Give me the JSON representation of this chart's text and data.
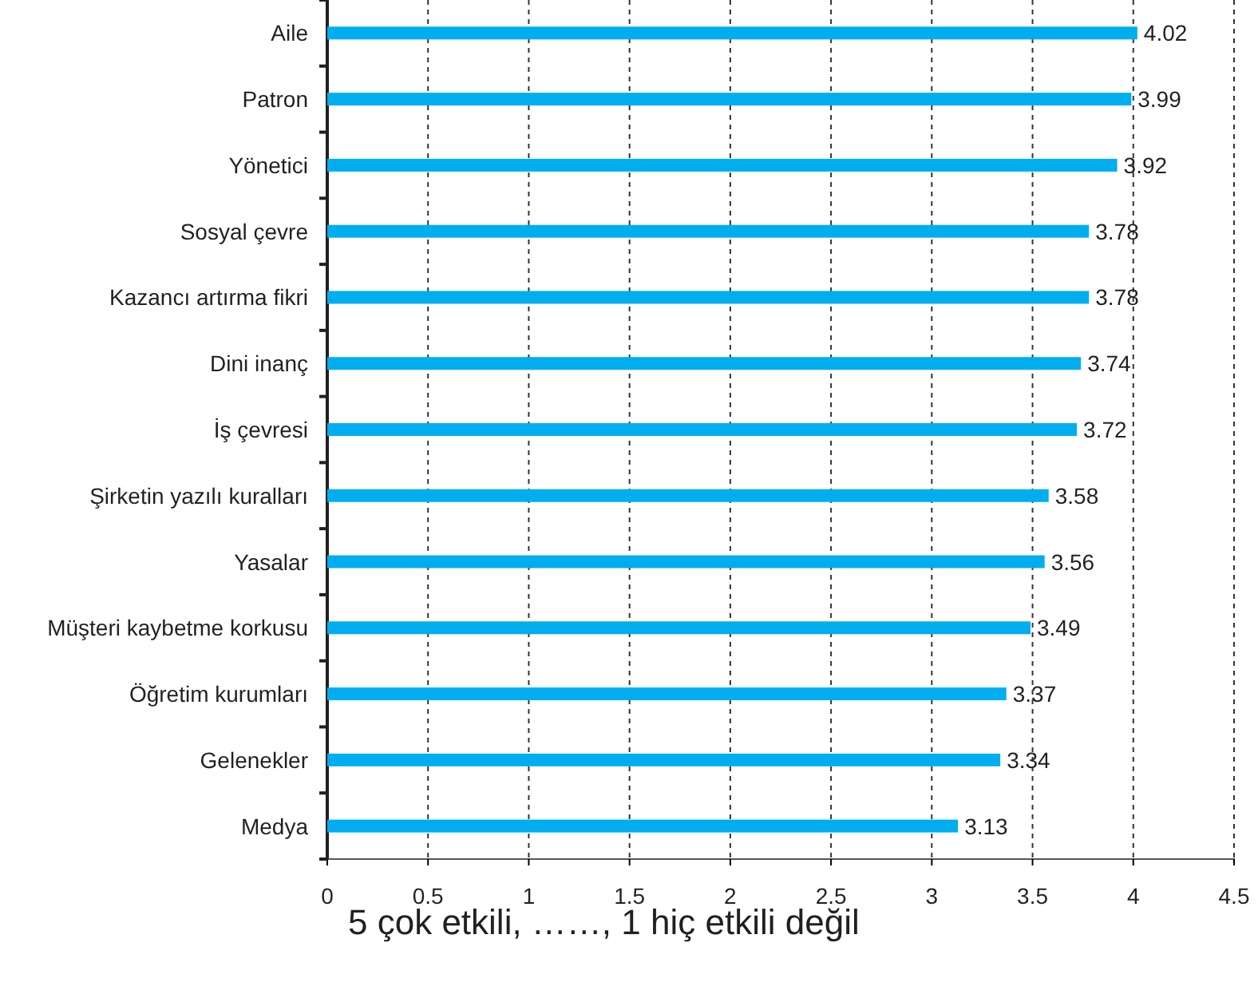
{
  "chart_data": {
    "type": "bar",
    "orientation": "horizontal",
    "categories": [
      "Aile",
      "Patron",
      "Yönetici",
      "Sosyal çevre",
      "Kazancı artırma fikri",
      "Dini inanç",
      "İş çevresi",
      "Şirketin yazılı kuralları",
      "Yasalar",
      "Müşteri kaybetme korkusu",
      "Öğretim kurumları",
      "Gelenekler",
      "Medya"
    ],
    "values": [
      4.02,
      3.99,
      3.92,
      3.78,
      3.78,
      3.74,
      3.72,
      3.58,
      3.56,
      3.49,
      3.37,
      3.34,
      3.13
    ],
    "color": "#00aeef",
    "xlim": [
      0,
      4.5
    ],
    "xticks": [
      0,
      0.5,
      1,
      1.5,
      2,
      2.5,
      3,
      3.5,
      4,
      4.5
    ],
    "xlabel": "5 çok etkili, ……, 1 hiç etkili değil",
    "grid": "x",
    "data_labels": true
  }
}
